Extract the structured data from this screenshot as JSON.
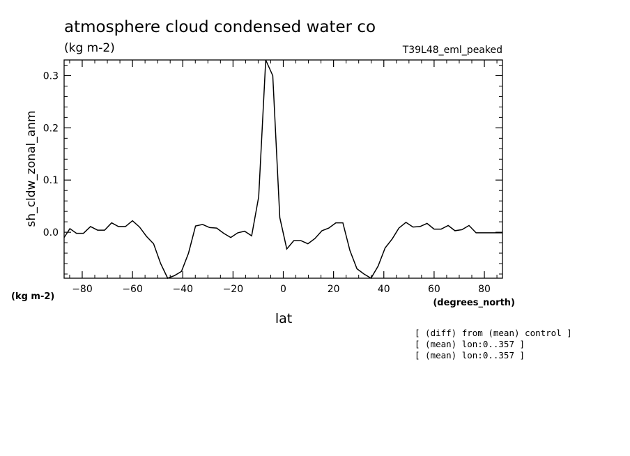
{
  "chart_data": {
    "type": "line",
    "title": "atmosphere cloud condensed water co",
    "units": "(kg m-2)",
    "experiment": "T39L48_eml_peaked",
    "ylabel": "sh_cldw_zonal_anm",
    "yunits": "(kg m-2)",
    "xlabel": "lat",
    "xunits": "(degrees_north)",
    "xlim": [
      -87.2,
      87.2
    ],
    "ylim": [
      -0.088,
      0.33
    ],
    "xticks": [
      -80,
      -60,
      -40,
      -20,
      0,
      20,
      40,
      60,
      80
    ],
    "xtick_labels": [
      "−80",
      "−60",
      "−40",
      "−20",
      "0",
      "20",
      "40",
      "60",
      "80"
    ],
    "yticks": [
      0.0,
      0.1,
      0.2,
      0.3
    ],
    "ytick_labels": [
      "0.0",
      "0.1",
      "0.2",
      "0.3"
    ],
    "grid": false,
    "series": [
      {
        "x": [
          -87.2,
          -84.9,
          -82.3,
          -79.5,
          -76.7,
          -73.9,
          -71.1,
          -68.3,
          -65.6,
          -62.8,
          -60.0,
          -57.2,
          -54.4,
          -51.6,
          -48.8,
          -46.0,
          -43.3,
          -40.5,
          -37.7,
          -34.9,
          -32.1,
          -29.3,
          -26.5,
          -23.7,
          -20.9,
          -18.1,
          -15.4,
          -12.6,
          -9.8,
          -7.0,
          -4.2,
          -1.4,
          1.4,
          4.2,
          7.0,
          9.8,
          12.6,
          15.4,
          18.1,
          20.9,
          23.7,
          26.5,
          29.3,
          32.1,
          34.9,
          37.7,
          40.5,
          43.3,
          46.0,
          48.8,
          51.6,
          54.4,
          57.2,
          60.0,
          62.8,
          65.6,
          68.3,
          71.1,
          73.9,
          76.7,
          79.5,
          82.3,
          84.9,
          87.2
        ],
        "y": [
          -0.01,
          0.007,
          -0.002,
          -0.002,
          0.011,
          0.004,
          0.004,
          0.018,
          0.011,
          0.011,
          0.022,
          0.01,
          -0.008,
          -0.022,
          -0.06,
          -0.088,
          -0.083,
          -0.075,
          -0.04,
          0.012,
          0.015,
          0.009,
          0.008,
          -0.002,
          -0.01,
          -0.001,
          0.002,
          -0.007,
          0.068,
          0.335,
          0.3,
          0.028,
          -0.032,
          -0.016,
          -0.016,
          -0.022,
          -0.012,
          0.003,
          0.008,
          0.018,
          0.018,
          -0.035,
          -0.07,
          -0.08,
          -0.088,
          -0.065,
          -0.03,
          -0.013,
          0.008,
          0.019,
          0.01,
          0.011,
          0.017,
          0.006,
          0.006,
          0.013,
          0.003,
          0.005,
          0.013,
          -0.001,
          -0.001,
          -0.001,
          -0.001,
          -0.001
        ]
      }
    ]
  },
  "notes": [
    "[ (diff) from (mean) control ]",
    "[ (mean) lon:0..357 ]",
    "[ (mean) lon:0..357 ]"
  ]
}
